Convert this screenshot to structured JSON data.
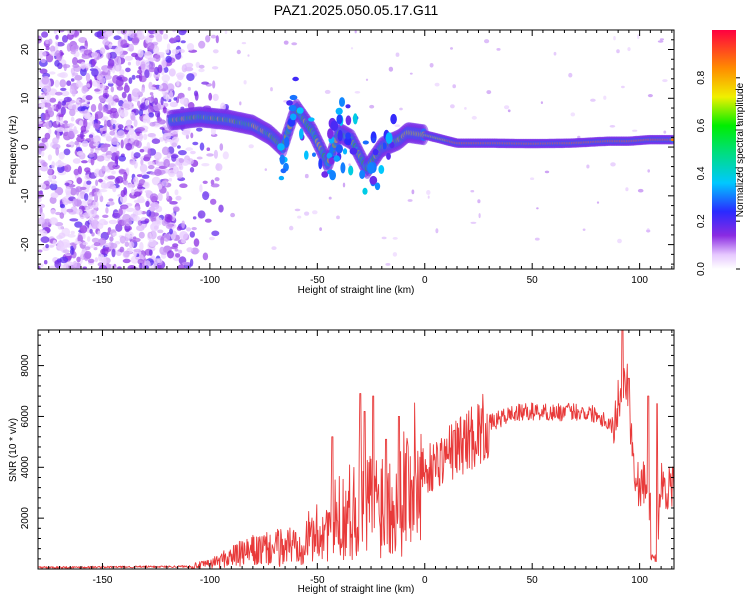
{
  "chart_data": [
    {
      "type": "heatmap",
      "title": "PAZ1.2025.050.05.17.G11",
      "xlabel": "Height of straight line (km)",
      "ylabel": "Frequency (Hz)",
      "xlim": [
        -180,
        116
      ],
      "ylim": [
        -25,
        24
      ],
      "xticks": [
        -150,
        -100,
        -50,
        0,
        50,
        100
      ],
      "yticks": [
        -20,
        -10,
        0,
        10,
        20
      ],
      "colorbar": {
        "label": "Normalized spectral amplitude",
        "range": [
          0,
          1
        ],
        "ticks": [
          "0.0",
          "0.2",
          "0.4",
          "0.6",
          "0.8"
        ],
        "colormap": "rainbow (violet to red)"
      },
      "dominant_track": [
        {
          "x": -118,
          "f": 5.5
        },
        {
          "x": -105,
          "f": 6.2
        },
        {
          "x": -92,
          "f": 5.6
        },
        {
          "x": -80,
          "f": 4.5
        },
        {
          "x": -72,
          "f": 2.5
        },
        {
          "x": -66,
          "f": 0.0
        },
        {
          "x": -60,
          "f": 8.0
        },
        {
          "x": -52,
          "f": 3.0
        },
        {
          "x": -45,
          "f": -3.5
        },
        {
          "x": -40,
          "f": 3.0
        },
        {
          "x": -34,
          "f": 1.5
        },
        {
          "x": -27,
          "f": -4.5
        },
        {
          "x": -20,
          "f": 0.0
        },
        {
          "x": -12,
          "f": 1.5
        },
        {
          "x": -8,
          "f": 3.0
        },
        {
          "x": 0,
          "f": 2.5
        },
        {
          "x": 8,
          "f": 1.6
        },
        {
          "x": 15,
          "f": 0.8
        },
        {
          "x": 30,
          "f": 0.8
        },
        {
          "x": 50,
          "f": 0.7
        },
        {
          "x": 68,
          "f": 0.8
        },
        {
          "x": 85,
          "f": 1.2
        },
        {
          "x": 95,
          "f": 1.2
        },
        {
          "x": 104,
          "f": 1.5
        },
        {
          "x": 116,
          "f": 1.5
        }
      ]
    },
    {
      "type": "line",
      "xlabel": "Height of straight line (km)",
      "ylabel": "SNR (10 * v/v)",
      "xlim": [
        -180,
        116
      ],
      "ylim": [
        0,
        9400
      ],
      "xticks": [
        -150,
        -100,
        -50,
        0,
        50,
        100
      ],
      "yticks": [
        2000,
        4000,
        6000,
        8000
      ],
      "color": "#e83a3a",
      "series_envelope": [
        {
          "x": -180,
          "y": 60
        },
        {
          "x": -140,
          "y": 80
        },
        {
          "x": -110,
          "y": 100
        },
        {
          "x": -100,
          "y": 200
        },
        {
          "x": -90,
          "y": 500
        },
        {
          "x": -80,
          "y": 700
        },
        {
          "x": -70,
          "y": 800
        },
        {
          "x": -60,
          "y": 1000
        },
        {
          "x": -50,
          "y": 1400
        },
        {
          "x": -40,
          "y": 2000
        },
        {
          "x": -30,
          "y": 2500
        },
        {
          "x": -20,
          "y": 2700
        },
        {
          "x": -10,
          "y": 3300
        },
        {
          "x": 0,
          "y": 3800
        },
        {
          "x": 10,
          "y": 4500
        },
        {
          "x": 20,
          "y": 5100
        },
        {
          "x": 30,
          "y": 5700
        },
        {
          "x": 40,
          "y": 6100
        },
        {
          "x": 50,
          "y": 6200
        },
        {
          "x": 60,
          "y": 6150
        },
        {
          "x": 70,
          "y": 6200
        },
        {
          "x": 80,
          "y": 6100
        },
        {
          "x": 88,
          "y": 5600
        },
        {
          "x": 91,
          "y": 7000
        },
        {
          "x": 94,
          "y": 7600
        },
        {
          "x": 98,
          "y": 3400
        },
        {
          "x": 104,
          "y": 3300
        },
        {
          "x": 107,
          "y": 300
        },
        {
          "x": 110,
          "y": 3300
        },
        {
          "x": 116,
          "y": 3100
        }
      ],
      "spikes": [
        {
          "x": -43,
          "y": 5200
        },
        {
          "x": -30,
          "y": 6900
        },
        {
          "x": -28,
          "y": 6200
        },
        {
          "x": -24,
          "y": 6800
        },
        {
          "x": -18,
          "y": 5100
        },
        {
          "x": -12,
          "y": 6000
        },
        {
          "x": 92,
          "y": 9400
        },
        {
          "x": 95,
          "y": 7500
        },
        {
          "x": 104,
          "y": 6800
        },
        {
          "x": 108,
          "y": 6500
        }
      ]
    }
  ]
}
